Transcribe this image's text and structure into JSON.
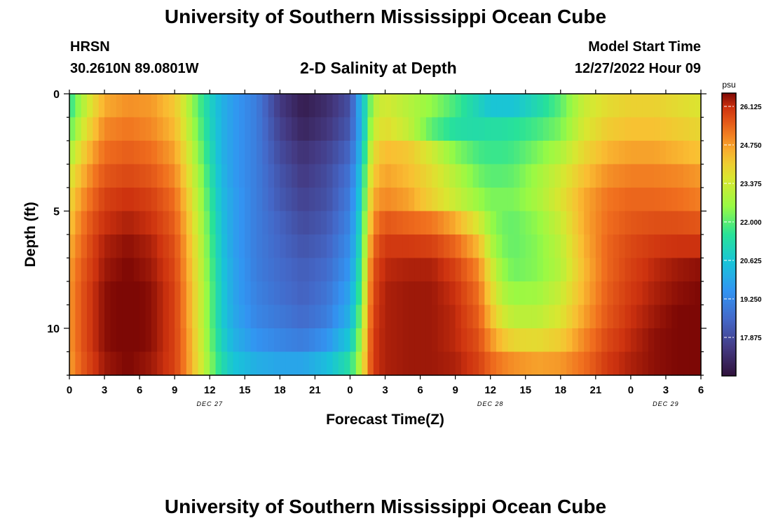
{
  "page_title": "University of Southern Mississippi Ocean Cube",
  "station": {
    "name": "HRSN",
    "coords": "30.2610N  89.0801W"
  },
  "chart_title": "2-D Salinity at Depth",
  "model_start": {
    "label": "Model Start Time",
    "value": "12/27/2022 Hour 09"
  },
  "footer_title": "University of Southern Mississippi Ocean Cube",
  "chart_data": {
    "type": "heatmap",
    "title": "2-D Salinity at Depth",
    "xlabel": "Forecast Time(Z)",
    "ylabel": "Depth (ft)",
    "x_range_hours": [
      0,
      54
    ],
    "y_range_ft": [
      0,
      12
    ],
    "x_ticks": [
      {
        "h": 0,
        "label": "0"
      },
      {
        "h": 3,
        "label": "3"
      },
      {
        "h": 6,
        "label": "6"
      },
      {
        "h": 9,
        "label": "9"
      },
      {
        "h": 12,
        "label": "12"
      },
      {
        "h": 15,
        "label": "15"
      },
      {
        "h": 18,
        "label": "18"
      },
      {
        "h": 21,
        "label": "21"
      },
      {
        "h": 24,
        "label": "0"
      },
      {
        "h": 27,
        "label": "3"
      },
      {
        "h": 30,
        "label": "6"
      },
      {
        "h": 33,
        "label": "9"
      },
      {
        "h": 36,
        "label": "12"
      },
      {
        "h": 39,
        "label": "15"
      },
      {
        "h": 42,
        "label": "18"
      },
      {
        "h": 45,
        "label": "21"
      },
      {
        "h": 48,
        "label": "0"
      },
      {
        "h": 51,
        "label": "3"
      },
      {
        "h": 54,
        "label": "6"
      }
    ],
    "date_labels": [
      {
        "h": 12,
        "label": "DEC 27"
      },
      {
        "h": 36,
        "label": "DEC 28"
      },
      {
        "h": 51,
        "label": "DEC 29"
      }
    ],
    "y_ticks": [
      {
        "v": 0,
        "label": "0"
      },
      {
        "v": 5,
        "label": "5"
      },
      {
        "v": 10,
        "label": "10"
      }
    ],
    "colorbar": {
      "unit": "psu",
      "min": 16.5,
      "max": 26.6,
      "labels": [
        "26.125",
        "24.750",
        "23.375",
        "22.000",
        "20.625",
        "19.250",
        "17.875"
      ]
    },
    "depth_levels_ft": [
      0.5,
      1.5,
      2.5,
      3.5,
      4.5,
      5.5,
      6.5,
      7.5,
      8.5,
      9.5,
      10.5,
      11.5
    ],
    "time_keys_h": [
      0,
      1,
      2,
      3,
      5,
      7,
      9,
      10,
      11,
      12,
      13,
      14,
      16,
      18,
      20,
      22,
      24,
      25,
      25.5,
      26,
      27,
      29,
      31,
      33,
      35,
      36,
      37,
      38,
      40,
      42,
      44,
      46,
      48,
      50,
      52,
      54
    ],
    "salinity_psu": [
      [
        21.5,
        22.8,
        23.8,
        24.6,
        24.9,
        24.8,
        24.2,
        23.2,
        22.0,
        21.0,
        20.2,
        19.7,
        19.0,
        17.5,
        16.8,
        17.2,
        18.0,
        20.5,
        21.5,
        23.0,
        23.5,
        23.0,
        22.5,
        21.8,
        21.0,
        20.6,
        20.6,
        20.6,
        21.2,
        22.0,
        23.3,
        23.8,
        24.0,
        24.0,
        23.8,
        23.6
      ],
      [
        22.0,
        23.3,
        24.2,
        25.0,
        25.2,
        25.0,
        24.4,
        23.4,
        22.2,
        21.1,
        20.2,
        19.7,
        19.0,
        17.7,
        17.0,
        17.4,
        18.2,
        20.3,
        21.8,
        23.3,
        23.8,
        23.2,
        22.0,
        21.4,
        21.3,
        21.4,
        21.4,
        21.5,
        21.8,
        22.3,
        23.5,
        24.1,
        24.3,
        24.3,
        24.1,
        23.9
      ],
      [
        22.8,
        23.9,
        24.7,
        25.3,
        25.5,
        25.3,
        24.7,
        23.7,
        22.5,
        21.3,
        20.2,
        19.7,
        19.0,
        17.9,
        17.3,
        17.7,
        18.5,
        20.5,
        22.5,
        23.8,
        24.4,
        24.2,
        23.4,
        22.4,
        21.8,
        21.7,
        21.7,
        21.8,
        22.3,
        22.9,
        23.9,
        24.5,
        24.7,
        24.7,
        24.5,
        24.3
      ],
      [
        23.5,
        24.4,
        25.1,
        25.6,
        25.8,
        25.6,
        25.0,
        24.0,
        22.8,
        21.5,
        20.3,
        19.7,
        19.0,
        18.1,
        17.5,
        17.9,
        18.8,
        20.8,
        23.0,
        24.2,
        24.7,
        24.4,
        23.8,
        23.0,
        22.2,
        22.0,
        22.0,
        22.1,
        22.7,
        23.4,
        24.3,
        24.9,
        25.1,
        25.1,
        25.0,
        24.8
      ],
      [
        23.9,
        24.8,
        25.4,
        25.9,
        26.1,
        25.9,
        25.3,
        24.3,
        23.0,
        21.7,
        20.4,
        19.8,
        19.0,
        18.2,
        17.7,
        18.0,
        19.0,
        21.0,
        23.3,
        24.6,
        25.0,
        24.7,
        24.0,
        23.3,
        22.6,
        22.3,
        22.3,
        22.3,
        22.8,
        23.6,
        24.6,
        25.2,
        25.4,
        25.4,
        25.3,
        25.1
      ],
      [
        24.2,
        25.1,
        25.7,
        26.1,
        26.3,
        26.1,
        25.5,
        24.5,
        23.2,
        21.9,
        20.5,
        19.8,
        19.0,
        18.4,
        17.9,
        18.2,
        19.2,
        21.3,
        23.6,
        25.0,
        25.6,
        25.4,
        25.2,
        24.6,
        23.5,
        22.6,
        22.2,
        22.1,
        22.5,
        23.3,
        24.6,
        25.3,
        25.6,
        25.7,
        25.7,
        25.6
      ],
      [
        24.5,
        25.3,
        25.9,
        26.3,
        26.5,
        26.3,
        25.7,
        24.7,
        23.4,
        22.0,
        20.6,
        19.8,
        19.0,
        18.5,
        18.1,
        18.4,
        19.4,
        21.5,
        24.0,
        25.4,
        26.0,
        26.0,
        25.9,
        25.4,
        24.4,
        23.0,
        22.3,
        22.1,
        22.4,
        23.1,
        24.5,
        25.4,
        25.8,
        26.0,
        26.1,
        26.1
      ],
      [
        24.7,
        25.5,
        26.0,
        26.4,
        26.6,
        26.4,
        25.8,
        24.8,
        23.5,
        22.1,
        20.7,
        19.9,
        19.0,
        18.6,
        18.3,
        18.6,
        19.6,
        21.8,
        24.3,
        25.7,
        26.2,
        26.3,
        26.3,
        25.9,
        25.0,
        23.6,
        22.6,
        22.2,
        22.4,
        23.0,
        24.4,
        25.4,
        25.9,
        26.2,
        26.4,
        26.5
      ],
      [
        24.8,
        25.6,
        26.1,
        26.5,
        26.7,
        26.5,
        25.9,
        24.9,
        23.6,
        22.2,
        20.8,
        19.9,
        19.1,
        18.7,
        18.4,
        18.8,
        19.9,
        22.1,
        24.5,
        25.8,
        26.3,
        26.4,
        26.4,
        26.1,
        25.3,
        24.0,
        23.0,
        22.6,
        22.7,
        23.3,
        24.5,
        25.5,
        26.0,
        26.3,
        26.5,
        26.6
      ],
      [
        24.8,
        25.6,
        26.1,
        26.5,
        26.7,
        26.5,
        25.9,
        24.9,
        23.6,
        22.2,
        20.8,
        20.0,
        19.2,
        18.9,
        18.6,
        19.0,
        20.2,
        22.5,
        24.7,
        25.9,
        26.3,
        26.4,
        26.4,
        26.2,
        25.5,
        24.4,
        23.5,
        23.1,
        23.1,
        23.6,
        24.7,
        25.6,
        26.1,
        26.4,
        26.6,
        26.7
      ],
      [
        24.8,
        25.6,
        26.1,
        26.5,
        26.7,
        26.5,
        25.9,
        25.0,
        23.7,
        22.3,
        21.0,
        20.2,
        19.5,
        19.2,
        19.0,
        19.5,
        20.7,
        22.9,
        24.9,
        26.0,
        26.3,
        26.4,
        26.4,
        26.2,
        25.7,
        24.9,
        24.3,
        23.9,
        23.8,
        24.1,
        25.0,
        25.8,
        26.2,
        26.5,
        26.6,
        26.7
      ],
      [
        24.7,
        25.5,
        26.0,
        26.4,
        26.6,
        26.4,
        25.9,
        25.0,
        23.8,
        22.5,
        21.3,
        20.6,
        20.1,
        19.9,
        19.9,
        20.4,
        21.4,
        23.3,
        25.0,
        26.0,
        26.3,
        26.4,
        26.4,
        26.3,
        25.9,
        25.4,
        25.1,
        24.9,
        24.7,
        24.8,
        25.3,
        26.0,
        26.3,
        26.5,
        26.6,
        26.7
      ]
    ]
  }
}
